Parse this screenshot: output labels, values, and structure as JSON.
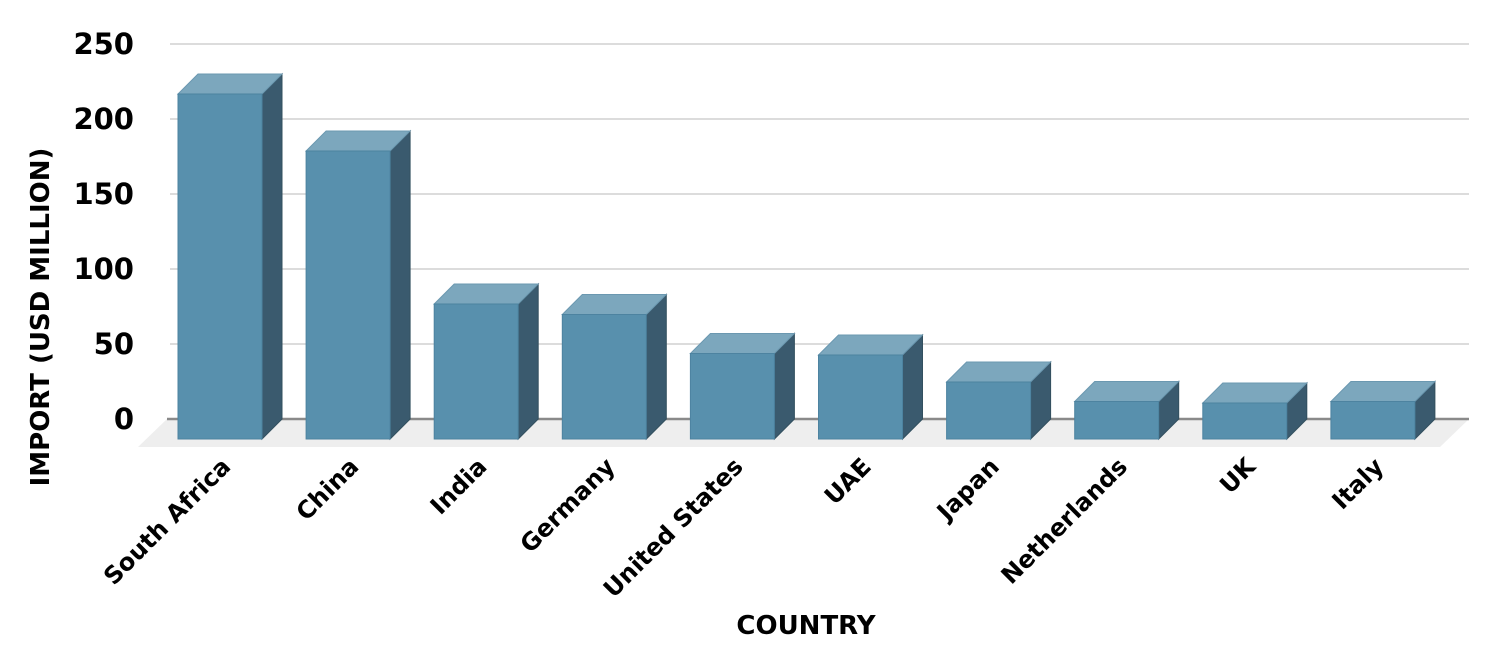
{
  "chart_data": {
    "type": "bar",
    "variant": "3d-column",
    "title": "",
    "xlabel": "COUNTRY",
    "ylabel": "IMPORT (USD MILLION)",
    "categories": [
      "South Africa",
      "China",
      "India",
      "Germany",
      "United States",
      "UAE",
      "Japan",
      "Netherlands",
      "UK",
      "Italy"
    ],
    "values": [
      230,
      192,
      90,
      83,
      57,
      56,
      38,
      25,
      24,
      25
    ],
    "ylim": [
      0,
      250
    ],
    "yticks": [
      0,
      50,
      100,
      150,
      200,
      250
    ],
    "grid": true,
    "legend": false,
    "colors": {
      "bar_front": "#5890ad",
      "bar_top": "#7ca7bd",
      "bar_side": "#3a5a6e",
      "bar_front_edge": "#4d83a0",
      "bar_top_edge": "#6b98b0",
      "bar_side_edge": "#33505f",
      "floor": "#eeeeee",
      "gridline": "#dcdcdc",
      "baseline": "#8a8a8a",
      "text": "#000000",
      "background": "#ffffff"
    }
  }
}
